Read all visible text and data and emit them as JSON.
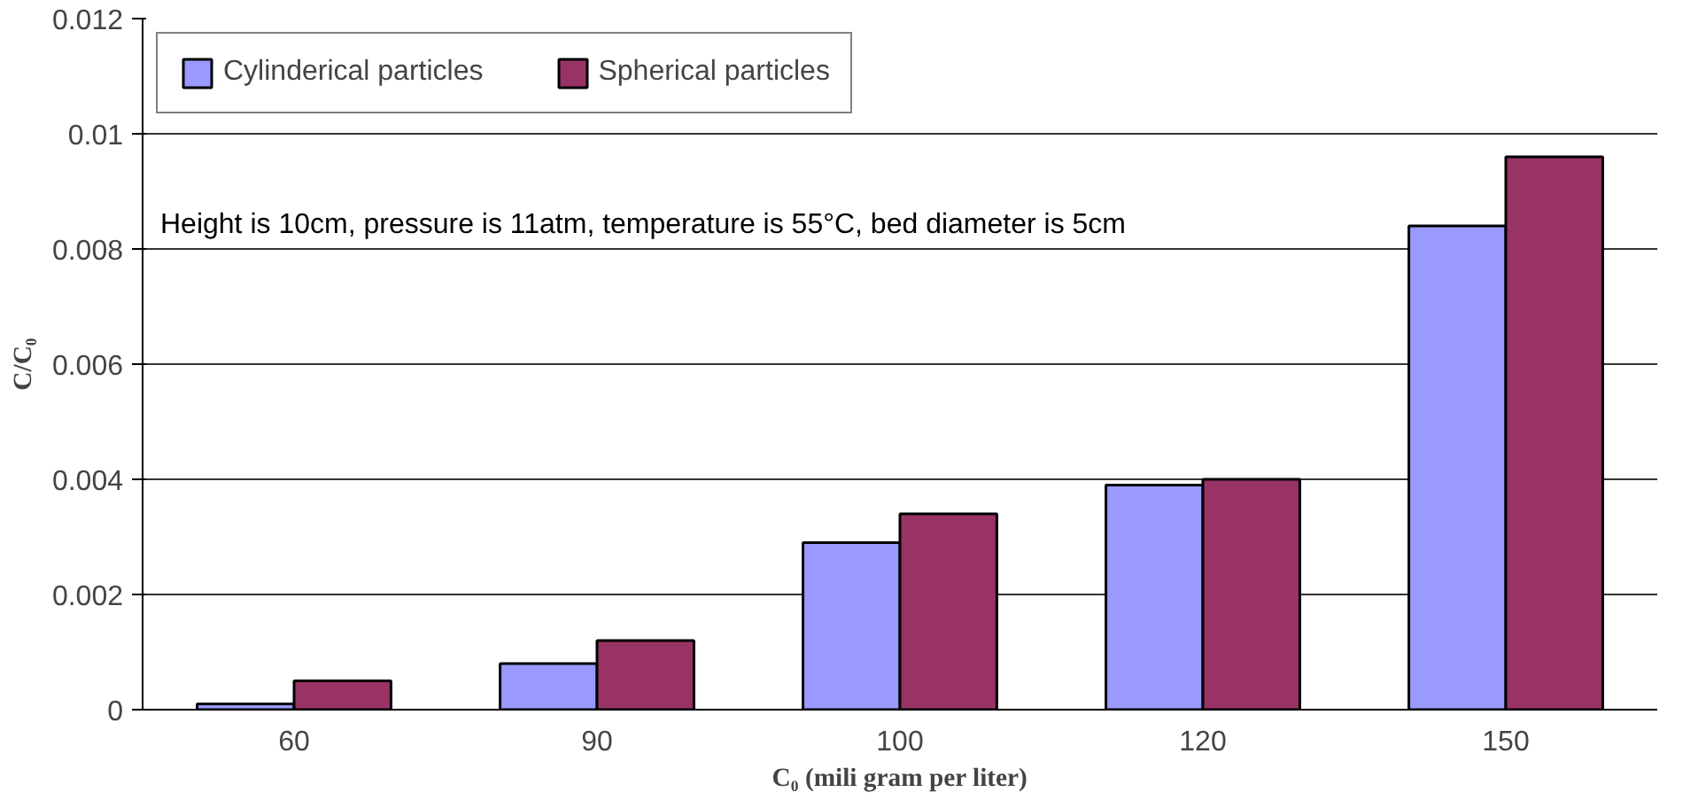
{
  "chart_data": {
    "type": "bar",
    "xlabel": "C₀ (mili gram per liter)",
    "ylabel": "C/C₀",
    "categories": [
      "60",
      "90",
      "100",
      "120",
      "150"
    ],
    "series": [
      {
        "name": "Cylinderical particles",
        "color": "#9999ff",
        "values": [
          0.0001,
          0.0008,
          0.0029,
          0.0039,
          0.0084
        ]
      },
      {
        "name": "Spherical particles",
        "color": "#993366",
        "values": [
          0.0005,
          0.0012,
          0.0034,
          0.004,
          0.0096
        ]
      }
    ],
    "ylim": [
      0,
      0.012
    ],
    "yticks": [
      0,
      0.002,
      0.004,
      0.006,
      0.008,
      0.01,
      0.012
    ],
    "annotations": [
      "Height is 10cm, pressure is 11atm, temperature is 55°C, bed diameter is 5cm"
    ],
    "grid": "y",
    "legend": "top left"
  }
}
